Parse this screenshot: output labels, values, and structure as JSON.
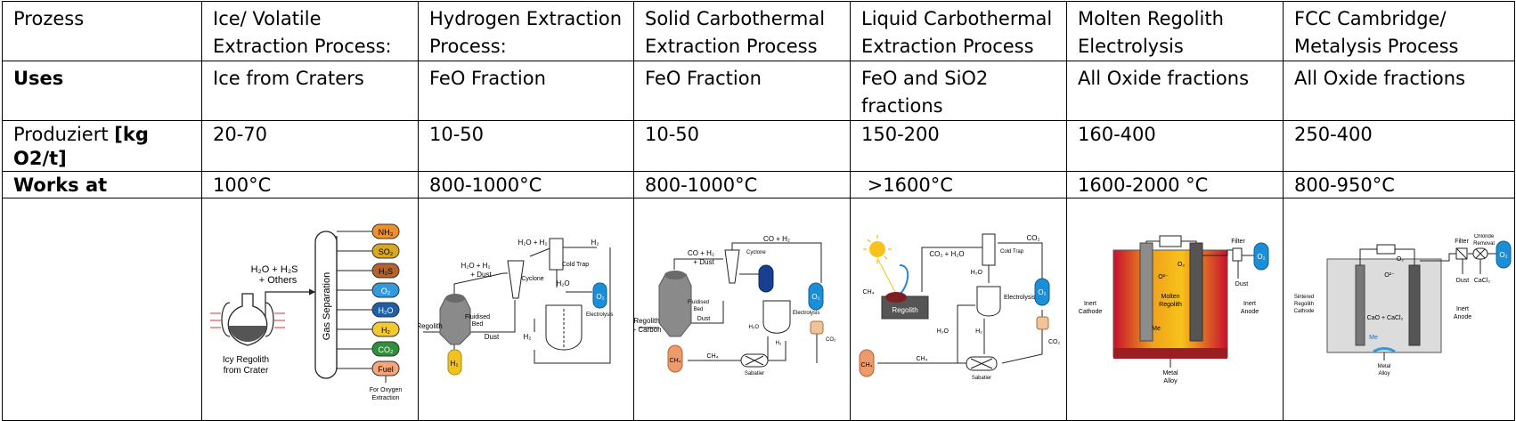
{
  "table": {
    "header": {
      "label": "Prozess",
      "cols": [
        "Ice/ Volatile Extraction Process:",
        "Hydrogen Extraction Process:",
        "Solid Carbothermal Extraction Process",
        "Liquid Carbothermal Extraction Process",
        "Molten Regolith Electrolysis",
        "FCC Cambridge/ Metalysis Process"
      ]
    },
    "uses": {
      "label": "Uses",
      "values": [
        "Ice from Craters",
        "FeO Fraction",
        "FeO Fraction",
        "FeO and SiO2 fractions",
        "All Oxide fractions",
        "All Oxide fractions"
      ]
    },
    "produced": {
      "label_prefix": "Produziert ",
      "label_bold": "[kg O2/t]",
      "values": [
        "20-70",
        "10-50",
        "10-50",
        "150-200",
        "160-400",
        "250-400"
      ]
    },
    "works": {
      "label": "Works at",
      "values": [
        "100°C",
        "800-1000°C",
        "800-1000°C",
        " >1600°C",
        "1600-2000 °C",
        "800-950°C"
      ]
    }
  },
  "diagrams": {
    "ice": {
      "input_top": "H₂O + H₂S",
      "input_bottom": "+ Others",
      "column": "Gas Separation",
      "flask_line1": "Icy Regolith",
      "flask_line2": "from Crater",
      "outputs": [
        "NH₃",
        "SO₂",
        "H₂S",
        "O₂",
        "H₂O",
        "H₂",
        "CO₂",
        "Fuel"
      ],
      "note_line1": "For Oxygen",
      "note_line2": "Extraction",
      "colors": [
        "#f0902a",
        "#d8a81e",
        "#b5632a",
        "#3399dd",
        "#1f5fa8",
        "#f3c832",
        "#2f8f3a",
        "#f4a57c"
      ]
    },
    "hydrogen": {
      "gas_top": "H₂O + H₂",
      "gas_bottom": "+ Dust",
      "gas2": "H₂O + H₂",
      "h2": "H₂",
      "cold_trap": "Cold Trap",
      "cyclone": "Cyclone",
      "bed_line1": "Fluidised",
      "bed_line2": "Bed",
      "h2o": "H₂O",
      "o2": "O₂",
      "electrolysis": "Electrolysis",
      "regolith": "Regolith",
      "dust": "Dust",
      "h2_return": "H₂",
      "h2_tank": "H₂"
    },
    "solid": {
      "top": "CO + H₂",
      "gas_top": "CO + H₂",
      "gas_bottom": "+ Dust",
      "cyclone": "Cyclone",
      "bed_line1": "Fluidised",
      "bed_line2": "Bed",
      "feed1": "Regolith",
      "feed2": "+ Carbon",
      "dust": "Dust",
      "ch4": "CH₄",
      "ch4_tank": "CH₄",
      "sabatier": "Sabatier",
      "h2o": "H₂O",
      "h2": "H₂",
      "electrolysis": "Electrolysis",
      "o2": "O₂",
      "co2": "CO₂"
    },
    "liquid": {
      "gas": "CO₂ + H₂O",
      "cold_trap": "Cold Trap",
      "co2_top": "CO₂",
      "ch4_small": "CH₄",
      "regolith": "Regolith",
      "h2o": "H₂O",
      "electrolysis": "Electrolysis",
      "o2": "O₂",
      "h2o2": "H₂O",
      "h2": "H₂",
      "co2": "CO₂",
      "ch4": "CH₄",
      "ch4_tank": "CH₄",
      "sabatier": "Sabatier"
    },
    "mre": {
      "filter": "Filter",
      "o2": "O₂",
      "dust": "Dust",
      "o2_small": "O₂",
      "o2_ion": "O²⁻",
      "molten1": "Molten",
      "molten2": "Regolith",
      "me": "Me",
      "cathode1": "Inert",
      "cathode2": "Cathode",
      "anode1": "Inert",
      "anode2": "Anode",
      "metal1": "Metal",
      "metal2": "Alloy"
    },
    "ffc": {
      "filter": "Filter",
      "chloride1": "Chloride",
      "chloride2": "Removal",
      "o2": "O₂",
      "o2_small": "O₂",
      "dust": "Dust",
      "cacl2": "CaCl₂",
      "o2_ion": "O²⁻",
      "melt": "CaO + CaCl₂",
      "me": "Me",
      "cathode1": "Sintered",
      "cathode2": "Regolith",
      "cathode3": "Cathode",
      "anode1": "Inert",
      "anode2": "Anode",
      "metal1": "Metal",
      "metal2": "Alloy"
    }
  }
}
